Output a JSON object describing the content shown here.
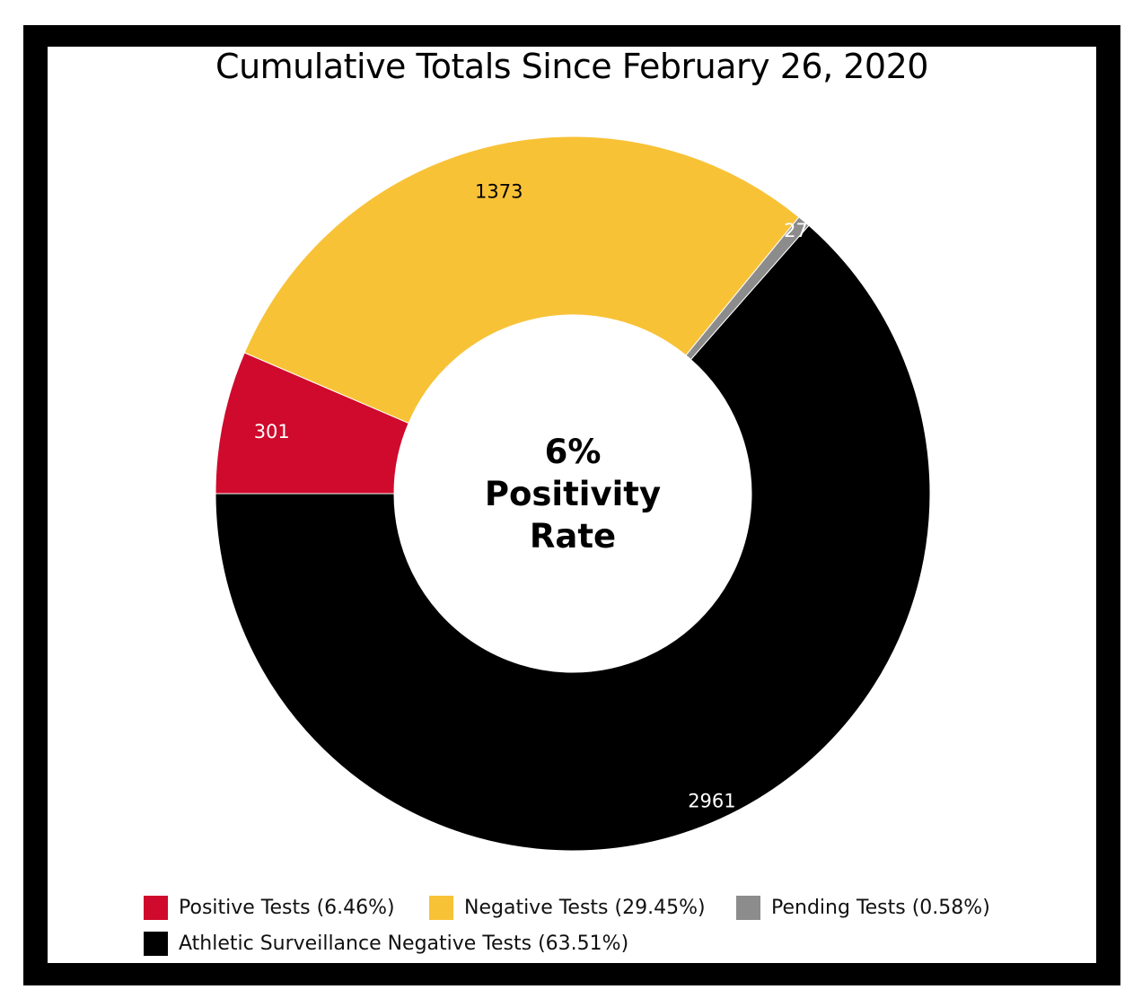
{
  "chart_data": {
    "type": "pie",
    "title": "Cumulative Totals Since February 26, 2020",
    "center_label": [
      "6%",
      "Positivity",
      "Rate"
    ],
    "slices": [
      {
        "name": "Positive Tests",
        "value": 301,
        "percent_label": "Positive Tests (6.46%)",
        "color": "#cf0a2c",
        "label_color": "#ffffff"
      },
      {
        "name": "Negative Tests",
        "value": 1373,
        "percent_label": "Negative Tests (29.45%)",
        "color": "#f8c237",
        "label_color": "#000000"
      },
      {
        "name": "Pending Tests",
        "value": 27,
        "percent_label": "Pending Tests (0.58%)",
        "color": "#8c8c8c",
        "label_color": "#ffffff"
      },
      {
        "name": "Athletic Surveillance Negative Tests",
        "value": 2961,
        "percent_label": "Athletic Surveillance Negative Tests (63.51%)",
        "color": "#000000",
        "label_color": "#ffffff"
      }
    ],
    "legend_position": "bottom"
  }
}
